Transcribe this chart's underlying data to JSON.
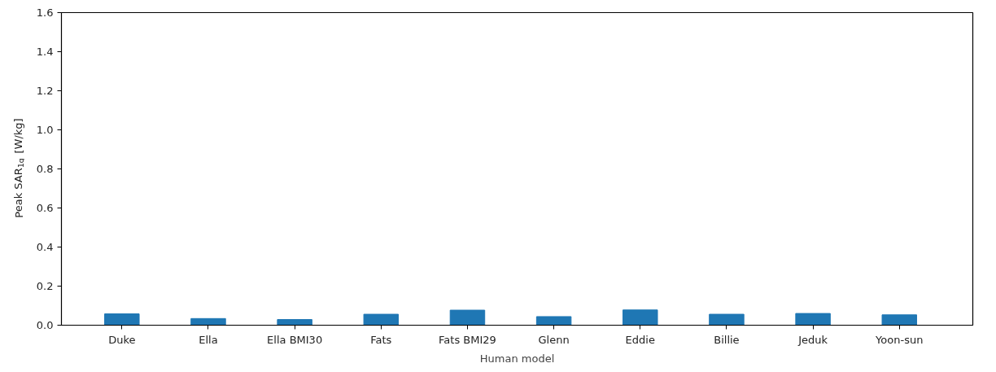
{
  "chart_data": {
    "type": "bar",
    "xlabel": "Human model",
    "ylabel": "Peak SAR$_{1g}$ [W/kg]",
    "categories": [
      "Duke",
      "Ella",
      "Ella BMI30",
      "Fats",
      "Fats BMI29",
      "Glenn",
      "Eddie",
      "Billie",
      "Jeduk",
      "Yoon-sun"
    ],
    "values": [
      0.058,
      0.034,
      0.029,
      0.056,
      0.077,
      0.044,
      0.078,
      0.056,
      0.06,
      0.053
    ],
    "color": "#1f77b4",
    "ylim": [
      0,
      1.6
    ],
    "yticks": [
      {
        "value": 0,
        "label": "0.0"
      },
      0.2,
      0.4,
      0.6,
      0.8,
      {
        "value": 1,
        "label": "1.0"
      },
      1.2,
      1.4,
      1.6
    ],
    "grid": false
  }
}
